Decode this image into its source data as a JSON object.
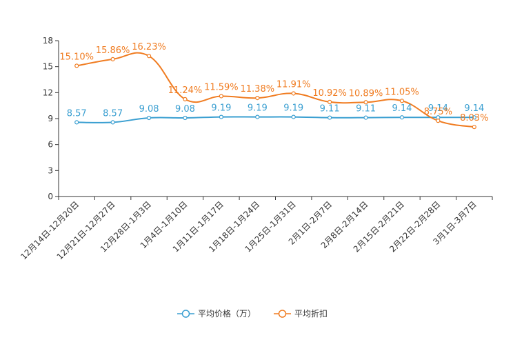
{
  "chart_data": {
    "type": "line",
    "categories": [
      "12月14日-12月20日",
      "12月21日-12月27日",
      "12月28日-1月3日",
      "1月4日-1月10日",
      "1月11日-1月17日",
      "1月18日-1月24日",
      "1月25日-1月31日",
      "2月1日-2月7日",
      "2月8日-2月14日",
      "2月15日-2月21日",
      "2月22日-2月28日",
      "3月1日-3月7日"
    ],
    "series": [
      {
        "name": "平均价格（万）",
        "color": "#3a9fd1",
        "values": [
          8.57,
          8.57,
          9.08,
          9.08,
          9.19,
          9.19,
          9.19,
          9.11,
          9.11,
          9.14,
          9.14,
          9.14
        ],
        "labels": [
          "8.57",
          "8.57",
          "9.08",
          "9.08",
          "9.19",
          "9.19",
          "9.19",
          "9.11",
          "9.11",
          "9.14",
          "9.14",
          "9.14"
        ]
      },
      {
        "name": "平均折扣",
        "color": "#f07c21",
        "values": [
          15.1,
          15.86,
          16.23,
          11.24,
          11.59,
          11.38,
          11.91,
          10.92,
          10.89,
          11.05,
          8.75,
          8.03
        ],
        "labels": [
          "15.10%",
          "15.86%",
          "16.23%",
          "11.24%",
          "11.59%",
          "11.38%",
          "11.91%",
          "10.92%",
          "10.89%",
          "11.05%",
          "8.75%",
          "8.03%"
        ]
      }
    ],
    "yticks": [
      0,
      3,
      6,
      9,
      12,
      15,
      18
    ],
    "ylim": [
      0,
      18
    ],
    "legend_position": "bottom-center",
    "grid": false
  }
}
